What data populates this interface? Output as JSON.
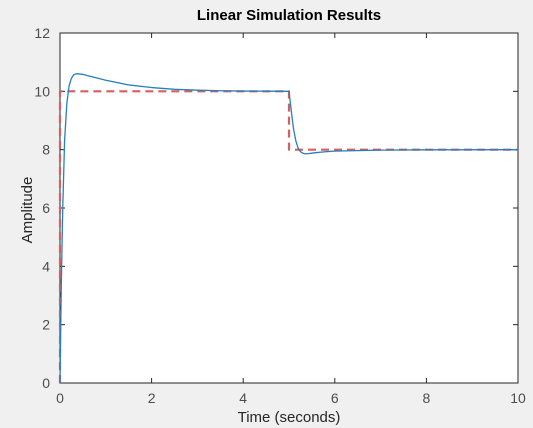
{
  "chart_data": {
    "type": "line",
    "title": "Linear Simulation Results",
    "xlabel": "Time (seconds)",
    "ylabel": "Amplitude",
    "xlim": [
      0,
      10
    ],
    "ylim": [
      0,
      12
    ],
    "xticks": [
      0,
      2,
      4,
      6,
      8,
      10
    ],
    "yticks": [
      0,
      2,
      4,
      6,
      8,
      10,
      12
    ],
    "grid": false,
    "series": [
      {
        "style": "dashed",
        "color": "#d95f5f",
        "x": [
          0,
          0,
          5,
          5,
          10
        ],
        "y": [
          0,
          10,
          10,
          8,
          8
        ]
      },
      {
        "style": "solid",
        "color": "#2a7fb8",
        "x": [
          0,
          0.03,
          0.06,
          0.1,
          0.15,
          0.2,
          0.25,
          0.3,
          0.35,
          0.4,
          0.5,
          0.6,
          0.8,
          1.0,
          1.5,
          2.0,
          2.5,
          3.0,
          3.5,
          4.0,
          4.5,
          5.0,
          5.03,
          5.06,
          5.1,
          5.15,
          5.2,
          5.25,
          5.3,
          5.35,
          5.4,
          5.5,
          5.6,
          5.8,
          6.0,
          6.5,
          7.0,
          8.0,
          10.0
        ],
        "y": [
          0,
          3.5,
          6.0,
          8.3,
          9.6,
          10.2,
          10.45,
          10.57,
          10.6,
          10.6,
          10.58,
          10.54,
          10.46,
          10.38,
          10.22,
          10.13,
          10.07,
          10.04,
          10.02,
          10.01,
          10.005,
          10.0,
          9.6,
          9.2,
          8.7,
          8.3,
          8.05,
          7.93,
          7.88,
          7.86,
          7.86,
          7.88,
          7.9,
          7.93,
          7.95,
          7.97,
          7.985,
          7.995,
          8.0
        ]
      }
    ]
  }
}
